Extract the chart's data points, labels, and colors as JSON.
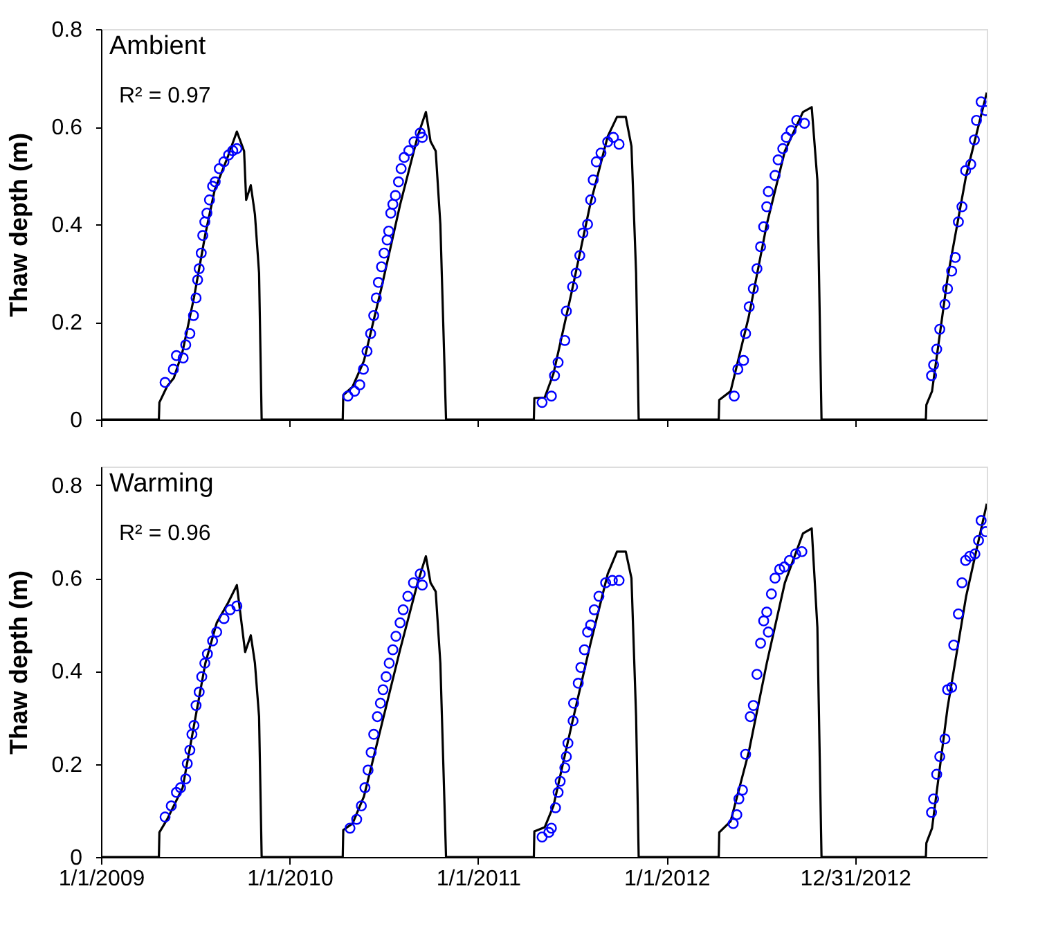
{
  "chart_data": [
    {
      "type": "line",
      "ylabel": "Thaw depth (m)",
      "annotations": [
        "Ambient",
        "R² = 0.97"
      ],
      "xlim": [
        "2009-01-01",
        "2013-09-12"
      ],
      "ylim": [
        0,
        0.8
      ],
      "yticks": [
        0,
        0.2,
        0.4,
        0.6,
        0.8
      ],
      "xticks": [
        {
          "value": "2009-01-01",
          "label": null
        },
        {
          "value": "2010-01-01",
          "label": null
        },
        {
          "value": "2011-01-01",
          "label": null
        },
        {
          "value": "2012-01-01",
          "label": null
        },
        {
          "value": "2012-12-31",
          "label": null
        }
      ],
      "tick_labels": "y",
      "series": [
        {
          "color": "#000000",
          "line_style": "solid",
          "x": [
            "2009-01-01",
            "2009-04-23",
            "2009-04-24",
            "2009-05-09",
            "2009-05-22",
            "2009-06-08",
            "2009-06-30",
            "2009-07-22",
            "2009-08-09",
            "2009-09-04",
            "2009-09-21",
            "2009-10-05",
            "2009-10-09",
            "2009-10-18",
            "2009-10-26",
            "2009-11-03",
            "2009-11-08",
            "2010-04-14",
            "2010-04-15",
            "2010-05-03",
            "2010-05-25",
            "2010-06-28",
            "2010-08-03",
            "2010-09-06",
            "2010-09-22",
            "2010-10-01",
            "2010-10-11",
            "2010-10-20",
            "2010-10-31",
            "2011-04-19",
            "2011-04-20",
            "2011-05-10",
            "2011-05-27",
            "2011-07-01",
            "2011-08-06",
            "2011-09-09",
            "2011-09-27",
            "2011-10-14",
            "2011-10-25",
            "2011-11-03",
            "2011-11-08",
            "2012-04-11",
            "2012-04-12",
            "2012-05-04",
            "2012-06-08",
            "2012-07-13",
            "2012-08-17",
            "2012-09-21",
            "2012-10-08",
            "2012-10-19",
            "2012-10-27",
            "2013-05-17",
            "2013-05-18",
            "2013-05-29",
            "2013-06-28",
            "2013-08-03",
            "2013-09-12"
          ],
          "values": [
            0,
            0,
            0.035,
            0.068,
            0.085,
            0.14,
            0.25,
            0.38,
            0.47,
            0.54,
            0.59,
            0.55,
            0.45,
            0.48,
            0.42,
            0.3,
            0,
            0,
            0.05,
            0.067,
            0.12,
            0.27,
            0.44,
            0.58,
            0.63,
            0.57,
            0.55,
            0.4,
            0,
            0,
            0.044,
            0.045,
            0.094,
            0.26,
            0.44,
            0.58,
            0.62,
            0.62,
            0.56,
            0.3,
            0,
            0,
            0.04,
            0.058,
            0.21,
            0.4,
            0.55,
            0.63,
            0.64,
            0.49,
            0,
            0,
            0.03,
            0.058,
            0.29,
            0.5,
            0.67
          ]
        },
        {
          "type": "scatter",
          "color": "#0000ff",
          "marker": "circle",
          "x": [
            "2009-05-05",
            "2009-05-21",
            "2009-05-27",
            "2009-06-09",
            "2009-06-14",
            "2009-06-22",
            "2009-06-29",
            "2009-07-04",
            "2009-07-07",
            "2009-07-10",
            "2009-07-14",
            "2009-07-17",
            "2009-07-21",
            "2009-07-25",
            "2009-07-30",
            "2009-08-05",
            "2009-08-10",
            "2009-08-18",
            "2009-08-27",
            "2009-09-05",
            "2009-09-13",
            "2009-09-21",
            "2010-04-24",
            "2010-05-07",
            "2010-05-17",
            "2010-05-24",
            "2010-05-31",
            "2010-06-07",
            "2010-06-13",
            "2010-06-18",
            "2010-06-22",
            "2010-06-28",
            "2010-07-03",
            "2010-07-09",
            "2010-07-12",
            "2010-07-16",
            "2010-07-20",
            "2010-07-25",
            "2010-07-31",
            "2010-08-05",
            "2010-08-11",
            "2010-08-20",
            "2010-08-30",
            "2010-09-11",
            "2010-09-15",
            "2011-05-05",
            "2011-05-23",
            "2011-05-29",
            "2011-06-05",
            "2011-06-18",
            "2011-06-21",
            "2011-07-03",
            "2011-07-10",
            "2011-07-17",
            "2011-07-23",
            "2011-08-01",
            "2011-08-07",
            "2011-08-12",
            "2011-08-18",
            "2011-08-27",
            "2011-09-09",
            "2011-09-20",
            "2011-10-01",
            "2012-05-11",
            "2012-05-18",
            "2012-05-29",
            "2012-06-02",
            "2012-06-09",
            "2012-06-17",
            "2012-06-24",
            "2012-07-01",
            "2012-07-07",
            "2012-07-13",
            "2012-07-16",
            "2012-07-29",
            "2012-08-04",
            "2012-08-13",
            "2012-08-20",
            "2012-08-29",
            "2012-09-09",
            "2012-09-24",
            "2013-05-28",
            "2013-06-01",
            "2013-06-07",
            "2013-06-13",
            "2013-06-23",
            "2013-06-28",
            "2013-07-06",
            "2013-07-13",
            "2013-07-19",
            "2013-07-26",
            "2013-08-02",
            "2013-08-12",
            "2013-08-19",
            "2013-08-23",
            "2013-09-01",
            "2013-09-10"
          ],
          "values": [
            0.076,
            0.103,
            0.131,
            0.126,
            0.153,
            0.176,
            0.213,
            0.249,
            0.286,
            0.309,
            0.341,
            0.377,
            0.405,
            0.423,
            0.45,
            0.478,
            0.487,
            0.514,
            0.528,
            0.542,
            0.551,
            0.555,
            0.048,
            0.058,
            0.071,
            0.103,
            0.14,
            0.176,
            0.213,
            0.249,
            0.281,
            0.313,
            0.341,
            0.368,
            0.386,
            0.423,
            0.441,
            0.459,
            0.487,
            0.514,
            0.537,
            0.551,
            0.569,
            0.587,
            0.578,
            0.035,
            0.048,
            0.09,
            0.117,
            0.162,
            0.222,
            0.272,
            0.3,
            0.336,
            0.382,
            0.4,
            0.45,
            0.491,
            0.528,
            0.546,
            0.569,
            0.578,
            0.564,
            0.048,
            0.103,
            0.121,
            0.176,
            0.231,
            0.268,
            0.309,
            0.354,
            0.395,
            0.436,
            0.467,
            0.5,
            0.532,
            0.555,
            0.578,
            0.592,
            0.613,
            0.607,
            0.09,
            0.112,
            0.144,
            0.185,
            0.236,
            0.268,
            0.304,
            0.332,
            0.405,
            0.436,
            0.51,
            0.523,
            0.573,
            0.613,
            0.651,
            0.633
          ]
        }
      ]
    },
    {
      "type": "line",
      "ylabel": "Thaw depth (m)",
      "annotations": [
        "Warming",
        "R² = 0.96"
      ],
      "xlim": [
        "2009-01-01",
        "2013-09-12"
      ],
      "ylim": [
        0,
        0.84
      ],
      "yticks": [
        0,
        0.2,
        0.4,
        0.6,
        0.8
      ],
      "xticks": [
        {
          "value": "2009-01-01",
          "label": "1/1/2009"
        },
        {
          "value": "2010-01-01",
          "label": "1/1/2010"
        },
        {
          "value": "2011-01-01",
          "label": "1/1/2011"
        },
        {
          "value": "2012-01-01",
          "label": "1/1/2012"
        },
        {
          "value": "2012-12-31",
          "label": "12/31/2012"
        }
      ],
      "series": [
        {
          "color": "#000000",
          "line_style": "solid",
          "x": [
            "2009-01-01",
            "2009-04-23",
            "2009-04-24",
            "2009-05-09",
            "2009-06-08",
            "2009-06-30",
            "2009-07-22",
            "2009-08-13",
            "2009-09-04",
            "2009-09-21",
            "2009-10-07",
            "2009-10-18",
            "2009-10-26",
            "2009-11-03",
            "2009-11-08",
            "2010-04-14",
            "2010-04-15",
            "2010-05-03",
            "2010-05-25",
            "2010-06-28",
            "2010-08-03",
            "2010-09-06",
            "2010-09-22",
            "2010-10-01",
            "2010-10-11",
            "2010-10-20",
            "2010-10-31",
            "2011-04-19",
            "2011-04-20",
            "2011-05-10",
            "2011-05-27",
            "2011-07-01",
            "2011-08-06",
            "2011-09-09",
            "2011-09-27",
            "2011-10-14",
            "2011-10-25",
            "2011-11-03",
            "2011-11-08",
            "2012-04-11",
            "2012-04-12",
            "2012-05-04",
            "2012-06-08",
            "2012-07-13",
            "2012-08-17",
            "2012-09-21",
            "2012-10-08",
            "2012-10-19",
            "2012-10-27",
            "2013-05-17",
            "2013-05-18",
            "2013-05-29",
            "2013-06-28",
            "2013-08-03",
            "2013-09-12"
          ],
          "values": [
            0,
            0,
            0.053,
            0.081,
            0.149,
            0.283,
            0.417,
            0.504,
            0.547,
            0.585,
            0.441,
            0.477,
            0.417,
            0.302,
            0,
            0,
            0.058,
            0.072,
            0.13,
            0.283,
            0.446,
            0.59,
            0.647,
            0.59,
            0.571,
            0.417,
            0,
            0,
            0.055,
            0.064,
            0.11,
            0.283,
            0.456,
            0.609,
            0.657,
            0.657,
            0.6,
            0.302,
            0,
            0,
            0.053,
            0.077,
            0.225,
            0.417,
            0.59,
            0.696,
            0.707,
            0.494,
            0,
            0,
            0.03,
            0.062,
            0.321,
            0.561,
            0.76
          ]
        },
        {
          "type": "scatter",
          "color": "#0000ff",
          "marker": "circle",
          "x": [
            "2009-05-05",
            "2009-05-17",
            "2009-05-27",
            "2009-06-04",
            "2009-06-14",
            "2009-06-17",
            "2009-06-22",
            "2009-06-26",
            "2009-06-30",
            "2009-07-04",
            "2009-07-10",
            "2009-07-15",
            "2009-07-21",
            "2009-07-26",
            "2009-08-05",
            "2009-08-13",
            "2009-08-27",
            "2009-09-08",
            "2009-09-21",
            "2010-04-28",
            "2010-05-11",
            "2010-05-20",
            "2010-05-27",
            "2010-06-02",
            "2010-06-08",
            "2010-06-13",
            "2010-06-20",
            "2010-06-26",
            "2010-07-01",
            "2010-07-07",
            "2010-07-13",
            "2010-07-20",
            "2010-07-26",
            "2010-08-03",
            "2010-08-09",
            "2010-08-18",
            "2010-08-29",
            "2010-09-11",
            "2010-09-15",
            "2011-05-05",
            "2011-05-18",
            "2011-05-23",
            "2011-05-31",
            "2011-06-05",
            "2011-06-09",
            "2011-06-18",
            "2011-06-21",
            "2011-06-24",
            "2011-07-04",
            "2011-07-05",
            "2011-07-14",
            "2011-07-19",
            "2011-07-26",
            "2011-08-01",
            "2011-08-07",
            "2011-08-14",
            "2011-08-23",
            "2011-09-05",
            "2011-09-18",
            "2011-10-01",
            "2012-05-09",
            "2012-05-16",
            "2012-05-20",
            "2012-05-27",
            "2012-06-02",
            "2012-06-11",
            "2012-06-17",
            "2012-06-24",
            "2012-07-01",
            "2012-07-07",
            "2012-07-13",
            "2012-07-16",
            "2012-07-22",
            "2012-07-29",
            "2012-08-07",
            "2012-08-16",
            "2012-08-26",
            "2012-09-07",
            "2012-09-19",
            "2013-05-28",
            "2013-06-01",
            "2013-06-07",
            "2013-06-13",
            "2013-06-23",
            "2013-06-28",
            "2013-07-06",
            "2013-07-10",
            "2013-07-19",
            "2013-07-26",
            "2013-08-02",
            "2013-08-10",
            "2013-08-20",
            "2013-08-27",
            "2013-09-01",
            "2013-09-10"
          ],
          "values": [
            0.086,
            0.11,
            0.139,
            0.149,
            0.168,
            0.201,
            0.23,
            0.264,
            0.283,
            0.326,
            0.355,
            0.388,
            0.417,
            0.437,
            0.465,
            0.484,
            0.513,
            0.532,
            0.54,
            0.062,
            0.081,
            0.11,
            0.149,
            0.187,
            0.225,
            0.264,
            0.302,
            0.331,
            0.36,
            0.388,
            0.417,
            0.446,
            0.475,
            0.504,
            0.532,
            0.561,
            0.59,
            0.609,
            0.585,
            0.043,
            0.053,
            0.062,
            0.106,
            0.139,
            0.163,
            0.192,
            0.216,
            0.245,
            0.293,
            0.331,
            0.374,
            0.408,
            0.446,
            0.484,
            0.499,
            0.532,
            0.561,
            0.59,
            0.595,
            0.595,
            0.072,
            0.091,
            0.125,
            0.144,
            0.221,
            0.302,
            0.326,
            0.393,
            0.46,
            0.508,
            0.527,
            0.484,
            0.566,
            0.6,
            0.619,
            0.624,
            0.638,
            0.652,
            0.657,
            0.096,
            0.125,
            0.178,
            0.216,
            0.254,
            0.36,
            0.365,
            0.456,
            0.523,
            0.59,
            0.638,
            0.647,
            0.652,
            0.681,
            0.724,
            0.7
          ]
        }
      ]
    }
  ]
}
